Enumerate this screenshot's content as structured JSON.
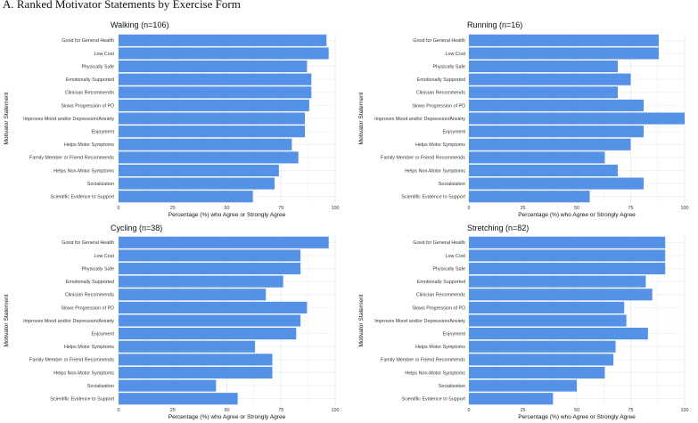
{
  "figure_title": "A. Ranked Motivator Statements by Exercise Form",
  "bar_color": "#5591e6",
  "grid_color": "#ebebeb",
  "chart_data": [
    {
      "type": "bar",
      "orientation": "horizontal",
      "title": "Walking (n=106)",
      "xlabel": "Percentage (%) who Agree or Strongly Agree",
      "ylabel": "Motivator Statement",
      "xlim": [
        0,
        100
      ],
      "xticks": [
        "0",
        "25",
        "50",
        "75",
        "100"
      ],
      "categories": [
        "Good for General Health",
        "Low Cost",
        "Physically Safe",
        "Emotionally Supported",
        "Clinician Recommends",
        "Slows Progression of PD",
        "Improves Mood and/or Depression/Anxiety",
        "Enjoyment",
        "Helps Motor Symptoms",
        "Family Member or Friend Recommends",
        "Helps Non-Motor Symptoms",
        "Socialization",
        "Scientific Evidence to Support"
      ],
      "values": [
        96,
        97,
        87,
        89,
        89,
        88,
        86,
        86,
        80,
        83,
        74,
        72,
        62
      ]
    },
    {
      "type": "bar",
      "orientation": "horizontal",
      "title": "Running (n=16)",
      "xlabel": "Percentage (%) who Agree or Strongly Agree",
      "ylabel": "Motivator Statement",
      "xlim": [
        0,
        100
      ],
      "xticks": [
        "0",
        "25",
        "50",
        "75",
        "100"
      ],
      "categories": [
        "Good for General Health",
        "Low Cost",
        "Physically Safe",
        "Emotionally Supported",
        "Clinician Recommends",
        "Slows Progression of PD",
        "Improves Mood and/or Depression/Anxiety",
        "Enjoyment",
        "Helps Motor Symptoms",
        "Family Member or Friend Recommends",
        "Helps Non-Motor Symptoms",
        "Socialization",
        "Scientific Evidence to Support"
      ],
      "values": [
        88,
        88,
        69,
        75,
        69,
        81,
        100,
        81,
        75,
        63,
        69,
        81,
        56
      ]
    },
    {
      "type": "bar",
      "orientation": "horizontal",
      "title": "Cycling (n=38)",
      "xlabel": "Percentage (%) who Agree or Strongly Agree",
      "ylabel": "Motivator Statement",
      "xlim": [
        0,
        100
      ],
      "xticks": [
        "0",
        "25",
        "50",
        "75",
        "100"
      ],
      "categories": [
        "Good for General Health",
        "Low Cost",
        "Physically Safe",
        "Emotionally Supported",
        "Clinician Recommends",
        "Slows Progression of PD",
        "Improves Mood and/or Depression/Anxiety",
        "Enjoyment",
        "Helps Motor Symptoms",
        "Family Member or Friend Recommends",
        "Helps Non-Motor Symptoms",
        "Socialization",
        "Scientific Evidence to Support"
      ],
      "values": [
        97,
        84,
        84,
        76,
        68,
        87,
        84,
        82,
        63,
        71,
        71,
        45,
        55
      ]
    },
    {
      "type": "bar",
      "orientation": "horizontal",
      "title": "Stretching (n=82)",
      "xlabel": "Percentage (%) who Agree or Strongly Agree",
      "ylabel": "Motivator Statement",
      "xlim": [
        0,
        100
      ],
      "xticks": [
        "0",
        "25",
        "50",
        "75",
        "100"
      ],
      "categories": [
        "Good for General Health",
        "Low Cost",
        "Physically Safe",
        "Emotionally Supported",
        "Clinician Recommends",
        "Slows Progression of PD",
        "Improves Mood and/or Depression/Anxiety",
        "Enjoyment",
        "Helps Motor Symptoms",
        "Family Member or Friend Recommends",
        "Helps Non-Motor Symptoms",
        "Socialization",
        "Scientific Evidence to Support"
      ],
      "values": [
        91,
        91,
        91,
        82,
        85,
        72,
        73,
        83,
        68,
        67,
        63,
        50,
        39
      ]
    }
  ]
}
